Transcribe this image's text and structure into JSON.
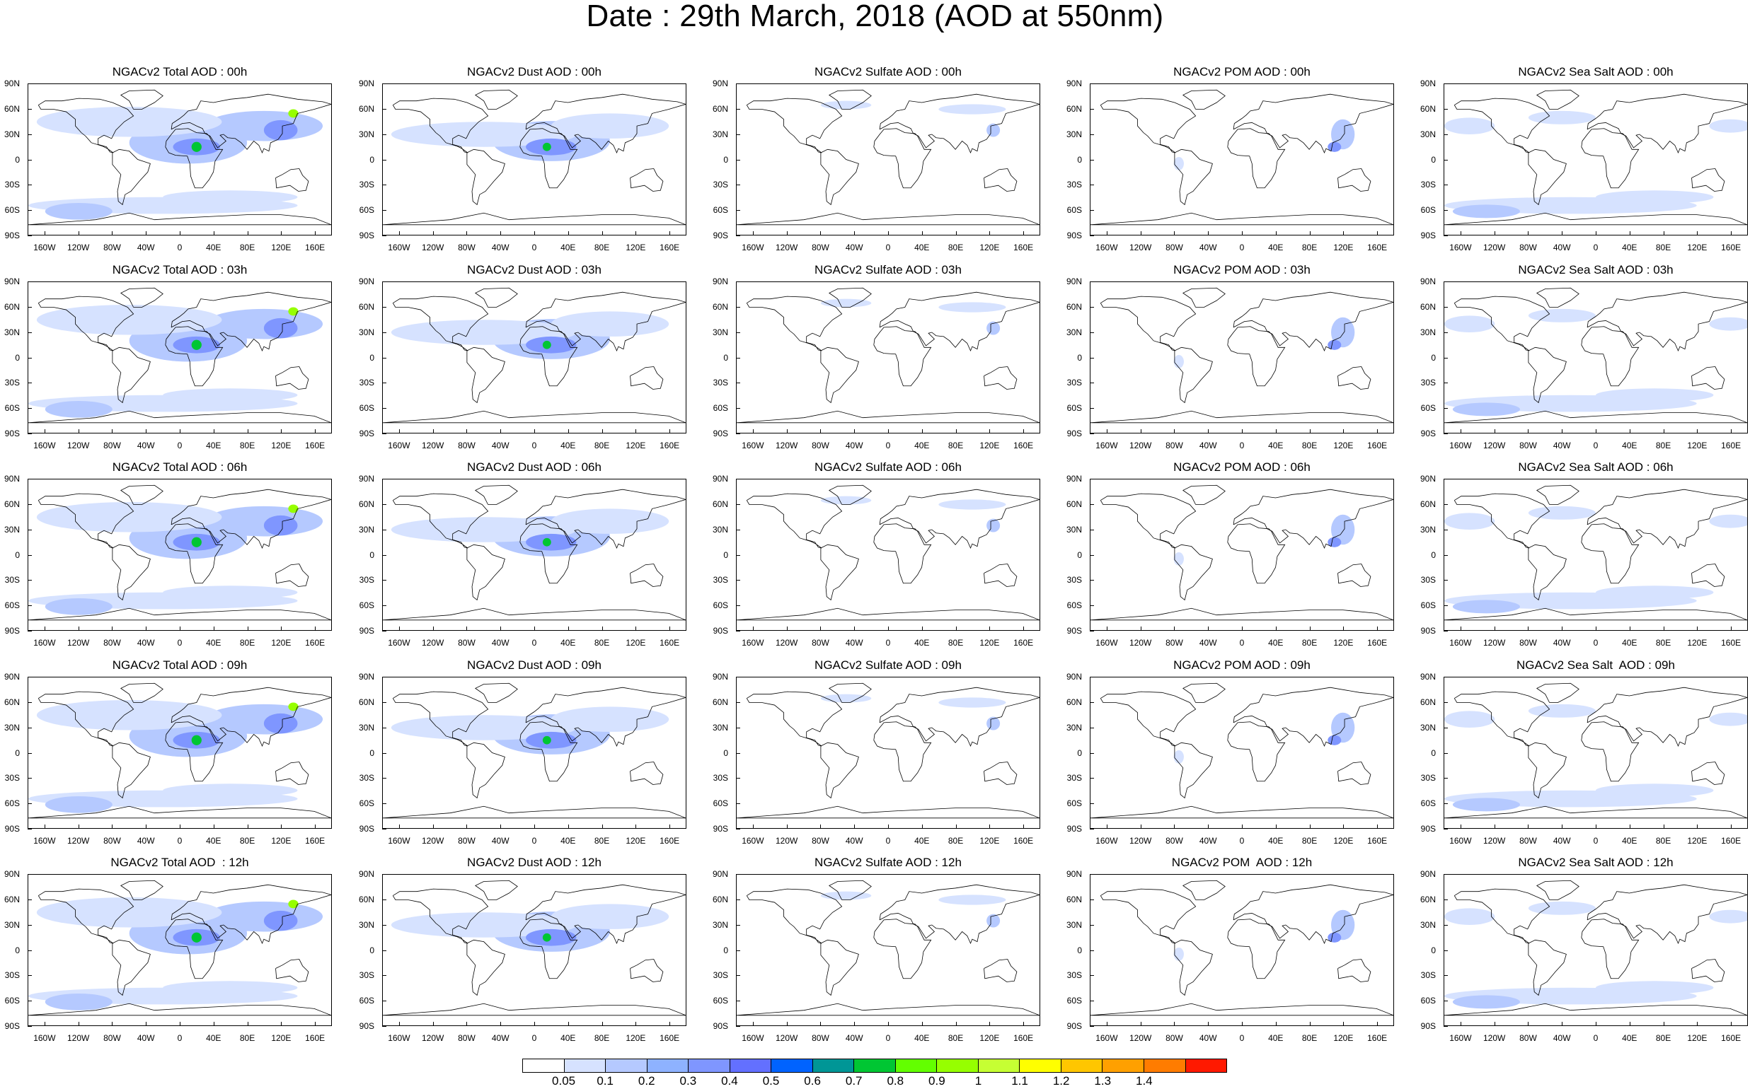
{
  "title": "Date : 29th March, 2018 (AOD at 550nm)",
  "lat_labels": [
    "90N",
    "60N",
    "30N",
    "0",
    "30S",
    "60S",
    "90S"
  ],
  "lon_labels": [
    "160W",
    "120W",
    "80W",
    "40W",
    "0",
    "40E",
    "80E",
    "120E",
    "160E"
  ],
  "panel_titles": [
    [
      "NGACv2 Total AOD : 00h",
      "NGACv2 Dust AOD : 00h",
      "NGACv2 Sulfate AOD : 00h",
      "NGACv2 POM AOD : 00h",
      "NGACv2 Sea Salt AOD : 00h"
    ],
    [
      "NGACv2 Total AOD : 03h",
      "NGACv2 Dust AOD : 03h",
      "NGACv2 Sulfate AOD : 03h",
      "NGACv2 POM AOD : 03h",
      "NGACv2 Sea Salt AOD : 03h"
    ],
    [
      "NGACv2 Total AOD : 06h",
      "NGACv2 Dust AOD : 06h",
      "NGACv2 Sulfate AOD : 06h",
      "NGACv2 POM AOD : 06h",
      "NGACv2 Sea Salt AOD : 06h"
    ],
    [
      "NGACv2 Total AOD : 09h",
      "NGACv2 Dust AOD : 09h",
      "NGACv2 Sulfate AOD : 09h",
      "NGACv2 POM AOD : 09h",
      "NGACv2 Sea Salt  AOD : 09h"
    ],
    [
      "NGACv2 Total AOD  : 12h",
      "NGACv2 Dust AOD : 12h",
      "NGACv2 Sulfate AOD : 12h",
      "NGACv2 POM  AOD : 12h",
      "NGACv2 Sea Salt AOD : 12h"
    ]
  ],
  "products": [
    "total",
    "dust",
    "sulfate",
    "pom",
    "seasalt"
  ],
  "colorbar": {
    "labels": [
      "0.05",
      "0.1",
      "0.2",
      "0.3",
      "0.4",
      "0.5",
      "0.6",
      "0.7",
      "0.8",
      "0.9",
      "1",
      "1.1",
      "1.2",
      "1.3",
      "1.4"
    ],
    "colors": [
      "#ffffff",
      "#d6e2ff",
      "#b5c9ff",
      "#8eb2ff",
      "#7f96ff",
      "#6370ff",
      "#0063ff",
      "#009696",
      "#00c633",
      "#63ff00",
      "#96ff00",
      "#c6ff33",
      "#ffff00",
      "#ffc600",
      "#ffa000",
      "#ff7c00",
      "#ff1900"
    ]
  }
}
